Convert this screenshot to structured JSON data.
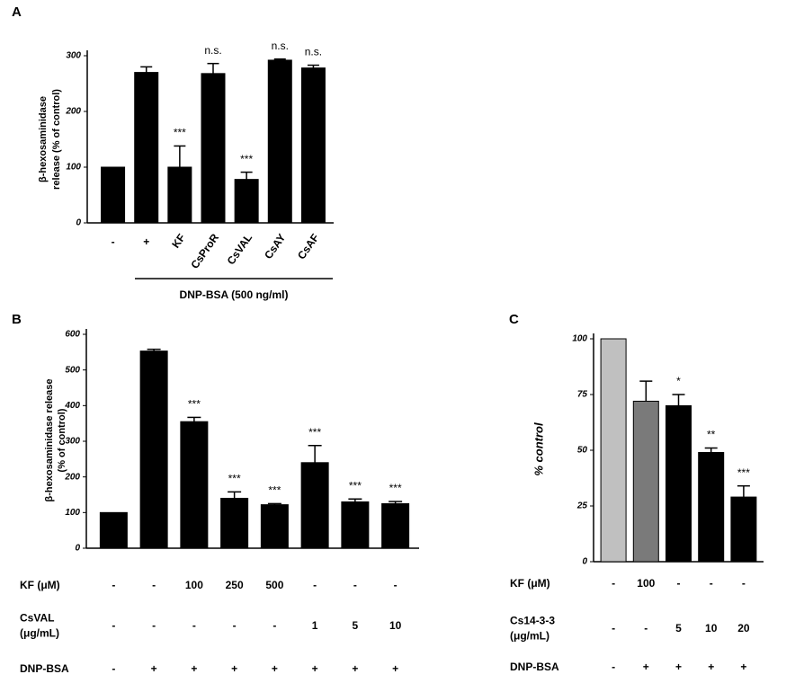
{
  "chart_data": [
    {
      "type": "bar",
      "panel_label": "A",
      "ylabel": [
        "β-hexosaminidase",
        "release (% of control)"
      ],
      "categories": [
        "-",
        "+",
        "KF",
        "CsProR",
        "CsVAL",
        "CsAY",
        "CsAF"
      ],
      "values": [
        100,
        270,
        100,
        268,
        78,
        292,
        278
      ],
      "errors": [
        0,
        10,
        38,
        18,
        13,
        2,
        5
      ],
      "annotations": [
        null,
        null,
        "***",
        "n.s.",
        "***",
        "n.s.",
        "n.s."
      ],
      "color": "#000000",
      "ylim": [
        0,
        300
      ],
      "yticks": [
        0,
        100,
        200,
        300
      ],
      "group_label": "DNP-BSA (500 ng/ml)"
    },
    {
      "type": "bar",
      "panel_label": "B",
      "ylabel": [
        "β-hexosaminidase release",
        "(% of control)"
      ],
      "values": [
        100,
        553,
        355,
        140,
        122,
        240,
        130,
        125
      ],
      "errors": [
        0,
        5,
        12,
        18,
        3,
        48,
        8,
        6
      ],
      "annotations": [
        null,
        null,
        "***",
        "***",
        "***",
        "***",
        "***",
        "***"
      ],
      "color": "#000000",
      "ylim": [
        0,
        600
      ],
      "yticks": [
        0,
        100,
        200,
        300,
        400,
        500,
        600
      ],
      "conditions": [
        {
          "label": [
            "KF (μM)"
          ],
          "values": [
            "-",
            "-",
            "100",
            "250",
            "500",
            "-",
            "-",
            "-"
          ]
        },
        {
          "label": [
            "CsVAL",
            "(μg/mL)"
          ],
          "values": [
            "-",
            "-",
            "-",
            "-",
            "-",
            "1",
            "5",
            "10"
          ]
        },
        {
          "label": [
            "DNP-BSA"
          ],
          "values": [
            "-",
            "+",
            "+",
            "+",
            "+",
            "+",
            "+",
            "+"
          ]
        }
      ]
    },
    {
      "type": "bar",
      "panel_label": "C",
      "ylabel": [
        "% control"
      ],
      "values": [
        100,
        72,
        70,
        49,
        29
      ],
      "errors": [
        0,
        9,
        5,
        2,
        5
      ],
      "annotations": [
        null,
        null,
        "*",
        "**",
        "***"
      ],
      "colors": [
        "#c0c0c0",
        "#7a7a7a",
        "#000000",
        "#000000",
        "#000000"
      ],
      "ylim": [
        0,
        100
      ],
      "yticks": [
        0,
        25,
        50,
        75,
        100
      ],
      "conditions": [
        {
          "label": [
            "KF (μM)"
          ],
          "values": [
            "-",
            "100",
            "-",
            "-",
            "-"
          ]
        },
        {
          "label": [
            "Cs14-3-3",
            "(μg/mL)"
          ],
          "values": [
            "-",
            "-",
            "5",
            "10",
            "20"
          ]
        },
        {
          "label": [
            "DNP-BSA"
          ],
          "values": [
            "-",
            "+",
            "+",
            "+",
            "+"
          ]
        }
      ]
    }
  ]
}
